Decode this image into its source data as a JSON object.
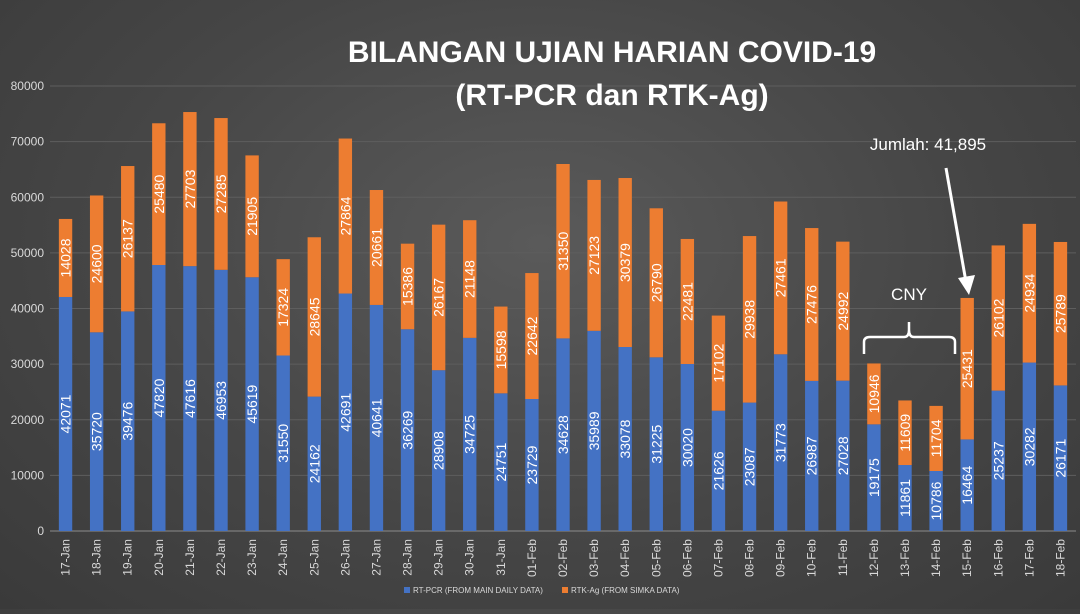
{
  "chart_data": {
    "type": "bar",
    "stacked": true,
    "title": "BILANGAN UJIAN HARIAN COVID-19",
    "subtitle": "(RT-PCR dan RTK-Ag)",
    "categories": [
      "17-Jan",
      "18-Jan",
      "19-Jan",
      "20-Jan",
      "21-Jan",
      "22-Jan",
      "23-Jan",
      "24-Jan",
      "25-Jan",
      "26-Jan",
      "27-Jan",
      "28-Jan",
      "29-Jan",
      "30-Jan",
      "31-Jan",
      "01-Feb",
      "02-Feb",
      "03-Feb",
      "04-Feb",
      "05-Feb",
      "06-Feb",
      "07-Feb",
      "08-Feb",
      "09-Feb",
      "10-Feb",
      "11-Feb",
      "12-Feb",
      "13-Feb",
      "14-Feb",
      "15-Feb",
      "16-Feb",
      "17-Feb",
      "18-Feb"
    ],
    "series": [
      {
        "name": "RT-PCR (FROM MAIN DAILY DATA)",
        "color": "#4472C4",
        "values": [
          42071,
          35720,
          39476,
          47820,
          47616,
          46953,
          45619,
          31550,
          24162,
          42691,
          40641,
          36269,
          28908,
          34725,
          24751,
          23729,
          34628,
          35989,
          33078,
          31225,
          30020,
          21626,
          23087,
          31773,
          26987,
          27028,
          19175,
          11861,
          10786,
          16464,
          25237,
          30282,
          26171
        ]
      },
      {
        "name": "RTK-Ag (FROM SIMKA DATA)",
        "color": "#ED7D31",
        "values": [
          14028,
          24600,
          26137,
          25480,
          27703,
          27285,
          21905,
          17324,
          28645,
          27864,
          20661,
          15386,
          26167,
          21148,
          15598,
          22642,
          31350,
          27123,
          30379,
          26790,
          22481,
          17102,
          29938,
          27461,
          27476,
          24992,
          10946,
          11609,
          11704,
          25431,
          26102,
          24934,
          25789
        ]
      }
    ],
    "ylim": [
      0,
      80000
    ],
    "yticks": [
      0,
      10000,
      20000,
      30000,
      40000,
      50000,
      60000,
      70000,
      80000
    ],
    "grid": true,
    "legend_position": "bottom",
    "annotations": {
      "total_label": "Jumlah: 41,895",
      "cny_label": "CNY"
    }
  }
}
